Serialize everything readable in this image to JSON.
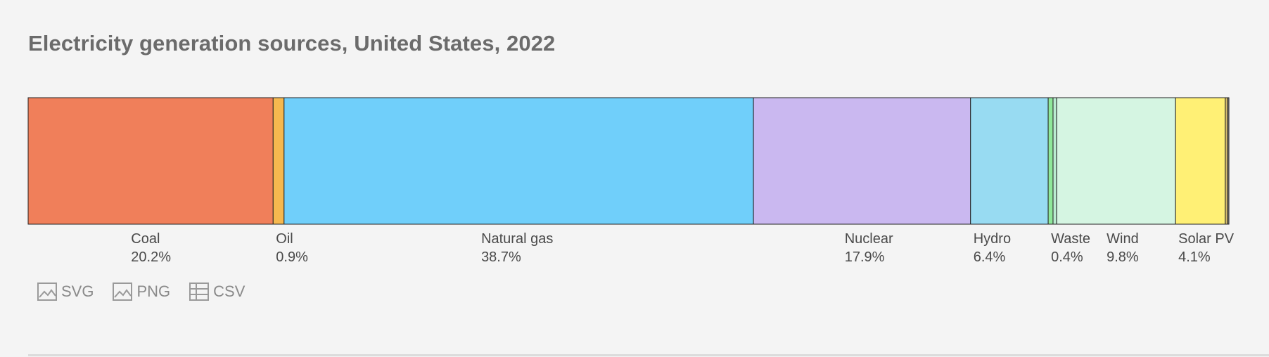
{
  "chart_data": {
    "type": "bar",
    "orientation": "horizontal-stacked-100",
    "title": "Electricity generation sources, United States, 2022",
    "unit": "%",
    "segments": [
      {
        "name": "Coal",
        "value": 20.2,
        "label": "20.2%",
        "color": "#f07f5a"
      },
      {
        "name": "Oil",
        "value": 0.9,
        "label": "0.9%",
        "color": "#f5b84f"
      },
      {
        "name": "Natural gas",
        "value": 38.7,
        "label": "38.7%",
        "color": "#70cffa"
      },
      {
        "name": "Nuclear",
        "value": 17.9,
        "label": "17.9%",
        "color": "#cab8f0"
      },
      {
        "name": "Hydro",
        "value": 6.4,
        "label": "6.4%",
        "color": "#98dbf2"
      },
      {
        "name": "Waste",
        "value": 0.4,
        "label": "0.4%",
        "color": "#8fe89a"
      },
      {
        "name": "",
        "value": 0.3,
        "label": "",
        "color": "#b9ecd0"
      },
      {
        "name": "Wind",
        "value": 9.8,
        "label": "9.8%",
        "color": "#d5f5e2"
      },
      {
        "name": "Solar PV",
        "value": 4.1,
        "label": "4.1%",
        "color": "#fff075"
      },
      {
        "name": "",
        "value": 0.2,
        "label": "",
        "color": "#d8c070"
      },
      {
        "name": "",
        "value": 0.1,
        "label": "",
        "color": "#888888"
      }
    ],
    "legend": "none",
    "grid": false
  },
  "toolbar": {
    "svg_label": "SVG",
    "png_label": "PNG",
    "csv_label": "CSV"
  }
}
